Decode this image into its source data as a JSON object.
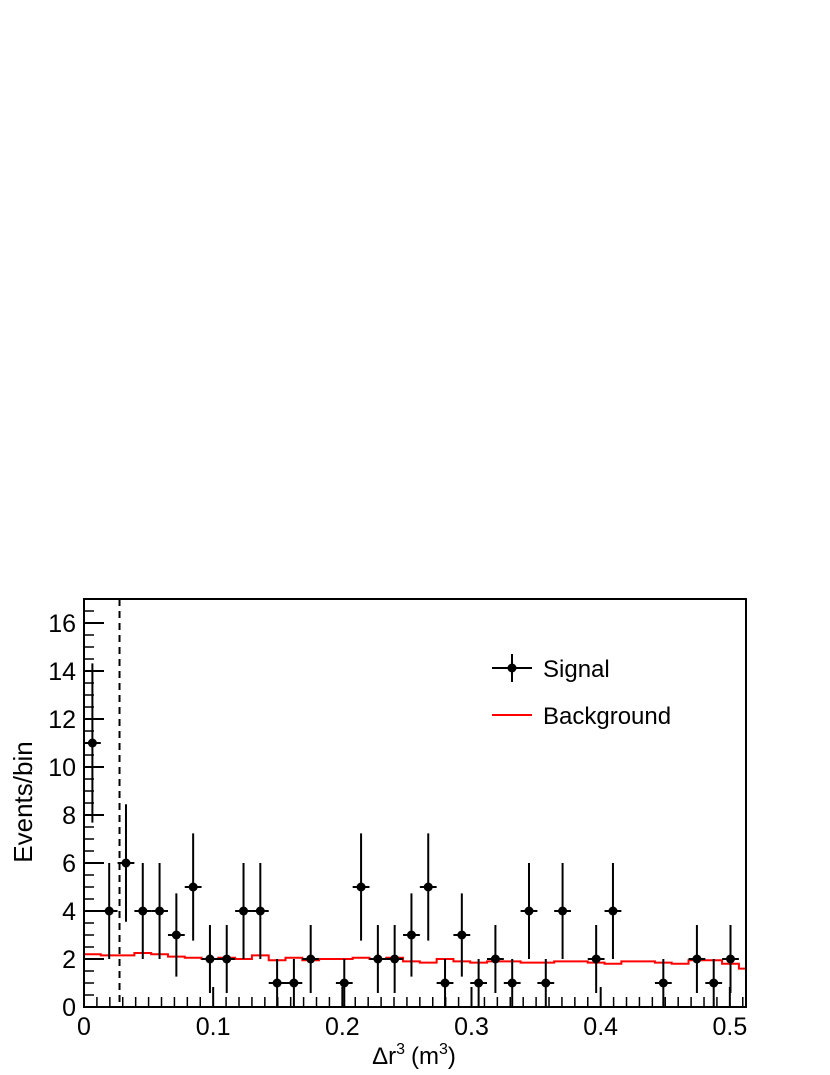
{
  "chart_data": {
    "type": "scatter",
    "xlabel": "Δr",
    "xlabel_sup": "3",
    "xlabel_unit": "(m",
    "xlabel_unit_sup": "3",
    "xlabel_unit_close": ")",
    "ylabel": "Events/bin",
    "xlim": [
      0,
      0.5125
    ],
    "ylim": [
      0,
      17
    ],
    "grid": false,
    "legend_position": "top-right",
    "x_ticks": [
      "0",
      "0.1",
      "0.2",
      "0.3",
      "0.4",
      "0.5"
    ],
    "y_ticks": [
      "0",
      "2",
      "4",
      "6",
      "8",
      "10",
      "12",
      "14",
      "16"
    ],
    "cut_line_x": 0.0275,
    "series": [
      {
        "name": "Signal",
        "color": "#000000",
        "bin_width": 0.013,
        "x": [
          0.0065,
          0.0195,
          0.0325,
          0.0455,
          0.0585,
          0.0715,
          0.0845,
          0.0975,
          0.1105,
          0.1235,
          0.1365,
          0.1495,
          0.1625,
          0.1755,
          0.2015,
          0.2145,
          0.2275,
          0.2405,
          0.2535,
          0.2665,
          0.2795,
          0.2925,
          0.3055,
          0.3185,
          0.3315,
          0.3445,
          0.3575,
          0.3705,
          0.3965,
          0.4095,
          0.4485,
          0.4745,
          0.4875,
          0.5005
        ],
        "y": [
          11,
          4,
          6,
          4,
          4,
          3,
          5,
          2,
          2,
          4,
          4,
          1,
          1,
          2,
          1,
          5,
          2,
          2,
          3,
          5,
          1,
          3,
          1,
          2,
          1,
          4,
          1,
          4,
          2,
          4,
          1,
          2,
          1,
          2
        ]
      },
      {
        "name": "Background",
        "color": "#ff0000",
        "step_edges": [
          0,
          0.013,
          0.026,
          0.039,
          0.052,
          0.065,
          0.078,
          0.091,
          0.104,
          0.117,
          0.13,
          0.143,
          0.156,
          0.169,
          0.182,
          0.195,
          0.208,
          0.221,
          0.234,
          0.247,
          0.26,
          0.273,
          0.286,
          0.299,
          0.312,
          0.325,
          0.338,
          0.351,
          0.364,
          0.377,
          0.39,
          0.403,
          0.416,
          0.429,
          0.442,
          0.455,
          0.468,
          0.481,
          0.494,
          0.507,
          0.5125
        ],
        "values": [
          2.2,
          2.15,
          2.15,
          2.25,
          2.2,
          2.1,
          2.05,
          2.0,
          2.05,
          2.0,
          2.15,
          1.95,
          2.05,
          1.95,
          2.0,
          2.0,
          2.05,
          2.0,
          2.05,
          1.9,
          1.85,
          2.0,
          1.9,
          1.85,
          1.9,
          1.9,
          1.85,
          1.85,
          1.9,
          1.9,
          1.85,
          1.8,
          1.9,
          1.9,
          1.85,
          1.8,
          1.95,
          1.95,
          1.8,
          1.6
        ]
      }
    ]
  }
}
